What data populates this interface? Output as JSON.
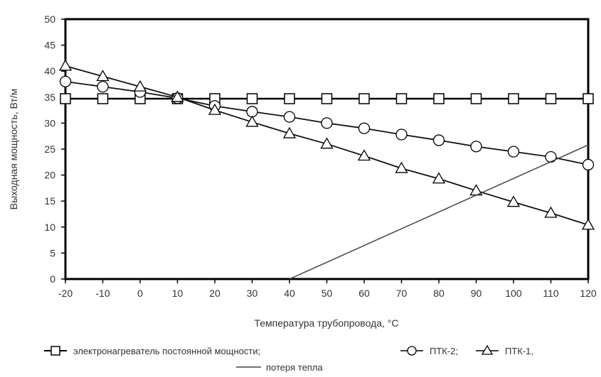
{
  "chart_data": {
    "type": "line",
    "xlabel": "Температура трубопровода, °С",
    "ylabel": "Выходная мощность, Вт/м",
    "xlim": [
      -20,
      120
    ],
    "ylim": [
      0,
      50
    ],
    "x_ticks": [
      "-20",
      "-10",
      "0",
      "10",
      "20",
      "30",
      "40",
      "50",
      "60",
      "70",
      "80",
      "90",
      "100",
      "110",
      "120"
    ],
    "y_ticks": [
      "0",
      "5",
      "10",
      "15",
      "20",
      "25",
      "30",
      "35",
      "40",
      "45",
      "50"
    ],
    "grid": false,
    "legend_position": "bottom",
    "series": [
      {
        "name": "электронагреватель постоянной мощности;",
        "marker": "square",
        "x": [
          -20,
          -10,
          0,
          10,
          20,
          30,
          40,
          50,
          60,
          70,
          80,
          90,
          100,
          110,
          120
        ],
        "values": [
          34.7,
          34.7,
          34.7,
          34.7,
          34.7,
          34.7,
          34.7,
          34.7,
          34.7,
          34.7,
          34.7,
          34.7,
          34.7,
          34.7,
          34.7
        ]
      },
      {
        "name": "ПТК-2;",
        "marker": "circle",
        "x": [
          -20,
          -10,
          0,
          10,
          20,
          30,
          40,
          50,
          60,
          70,
          80,
          90,
          100,
          110,
          120
        ],
        "values": [
          38.0,
          37.0,
          36.0,
          34.8,
          33.3,
          32.2,
          31.2,
          30.0,
          29.0,
          27.8,
          26.7,
          25.5,
          24.5,
          23.5,
          22.0
        ]
      },
      {
        "name": "ПТК-1,",
        "marker": "triangle",
        "x": [
          -20,
          -10,
          0,
          10,
          20,
          30,
          40,
          50,
          60,
          70,
          80,
          90,
          100,
          110,
          120
        ],
        "values": [
          41.0,
          39.0,
          37.0,
          35.0,
          32.5,
          30.2,
          28.0,
          26.0,
          23.7,
          21.3,
          19.3,
          17.0,
          14.8,
          12.7,
          10.4
        ]
      },
      {
        "name": "потеря тепла",
        "marker": "none",
        "x": [
          40,
          120
        ],
        "values": [
          0,
          25.8
        ]
      }
    ]
  }
}
